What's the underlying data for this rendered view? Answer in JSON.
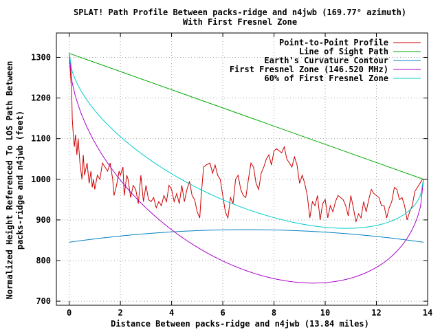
{
  "chart_data": {
    "type": "line",
    "title": "SPLAT! Path Profile Between packs-ridge and n4jwb (169.77° azimuth)",
    "subtitle": "With First Fresnel Zone",
    "xlabel": "Distance Between packs-ridge and n4jwb (13.84 miles)",
    "ylabel_line1": "Normalized Height Referenced To LOS Path Between",
    "ylabel_line2": "packs-ridge and n4jwb (feet)",
    "xlim": [
      -0.5,
      14
    ],
    "ylim": [
      690,
      1360
    ],
    "xticks": [
      0,
      2,
      4,
      6,
      8,
      10,
      12,
      14
    ],
    "yticks": [
      700,
      800,
      900,
      1000,
      1100,
      1200,
      1300
    ],
    "grid": true,
    "legend_position": "top-right",
    "series": [
      {
        "name": "Point-to-Point Profile",
        "color": "#cc0000",
        "x": [
          0,
          0.05,
          0.1,
          0.12,
          0.15,
          0.2,
          0.25,
          0.3,
          0.35,
          0.42,
          0.5,
          0.55,
          0.6,
          0.7,
          0.78,
          0.85,
          0.9,
          0.95,
          1.0,
          1.1,
          1.2,
          1.3,
          1.4,
          1.5,
          1.6,
          1.7,
          1.75,
          1.85,
          1.95,
          2.0,
          2.1,
          2.15,
          2.25,
          2.3,
          2.4,
          2.5,
          2.6,
          2.7,
          2.8,
          2.9,
          3.0,
          3.1,
          3.2,
          3.3,
          3.4,
          3.5,
          3.6,
          3.7,
          3.8,
          3.9,
          4.0,
          4.1,
          4.2,
          4.3,
          4.4,
          4.5,
          4.6,
          4.7,
          4.8,
          4.9,
          5.0,
          5.1,
          5.15,
          5.25,
          5.35,
          5.5,
          5.6,
          5.7,
          5.8,
          5.9,
          6.0,
          6.1,
          6.2,
          6.3,
          6.4,
          6.5,
          6.6,
          6.7,
          6.8,
          6.9,
          7.0,
          7.1,
          7.2,
          7.3,
          7.4,
          7.5,
          7.6,
          7.7,
          7.8,
          7.9,
          8.0,
          8.1,
          8.2,
          8.3,
          8.4,
          8.5,
          8.6,
          8.7,
          8.8,
          8.9,
          9.0,
          9.1,
          9.2,
          9.3,
          9.4,
          9.5,
          9.6,
          9.7,
          9.8,
          9.9,
          10.0,
          10.1,
          10.2,
          10.3,
          10.4,
          10.5,
          10.6,
          10.7,
          10.8,
          10.9,
          11.0,
          11.1,
          11.2,
          11.3,
          11.4,
          11.5,
          11.6,
          11.7,
          11.8,
          11.9,
          12.0,
          12.1,
          12.2,
          12.3,
          12.4,
          12.5,
          12.6,
          12.7,
          12.8,
          12.9,
          13.0,
          13.1,
          13.2,
          13.3,
          13.4,
          13.5,
          13.6,
          13.7,
          13.8
        ],
        "y": [
          1310,
          1260,
          1210,
          1150,
          1120,
          1080,
          1110,
          1060,
          1100,
          1040,
          1000,
          1060,
          1010,
          1040,
          990,
          1020,
          980,
          1000,
          975,
          1010,
          1000,
          1040,
          1030,
          1020,
          1040,
          1000,
          960,
          985,
          1020,
          1010,
          1030,
          960,
          1010,
          1000,
          955,
          985,
          975,
          940,
          1010,
          945,
          985,
          950,
          945,
          955,
          930,
          945,
          935,
          960,
          945,
          985,
          975,
          945,
          965,
          940,
          985,
          945,
          975,
          995,
          960,
          950,
          920,
          905,
          955,
          1030,
          1035,
          1040,
          1015,
          1035,
          1010,
          1000,
          960,
          920,
          905,
          955,
          940,
          1000,
          1010,
          975,
          960,
          955,
          1000,
          1040,
          1030,
          990,
          975,
          1015,
          1030,
          1050,
          1060,
          1035,
          1070,
          1075,
          1070,
          1065,
          1080,
          1050,
          1040,
          1030,
          1055,
          1035,
          990,
          1010,
          990,
          960,
          905,
          945,
          935,
          960,
          900,
          940,
          950,
          905,
          935,
          920,
          945,
          960,
          955,
          950,
          935,
          910,
          960,
          930,
          895,
          915,
          905,
          945,
          920,
          950,
          975,
          965,
          960,
          955,
          935,
          935,
          905,
          930,
          945,
          980,
          975,
          950,
          955,
          935,
          900,
          920,
          935,
          970,
          980,
          990,
          1000
        ]
      },
      {
        "name": "Line of Sight Path",
        "color": "#00aa00",
        "x": [
          0,
          13.84
        ],
        "y": [
          1310,
          1000
        ]
      },
      {
        "name": "Earth's Curvature Contour",
        "color": "#0080c0",
        "curve": "earth",
        "edge_value": 845,
        "peak_value": 876
      },
      {
        "name": "First Fresnel Zone (146.520 MHz)",
        "color": "#aa00cc",
        "curve": "fresnel",
        "fraction": 1.0
      },
      {
        "name": "60% of First Fresnel Zone",
        "color": "#00cccc",
        "curve": "fresnel",
        "fraction": 0.6
      }
    ],
    "fresnel_depth_at_mid": 380,
    "path_length_miles": 13.84
  }
}
